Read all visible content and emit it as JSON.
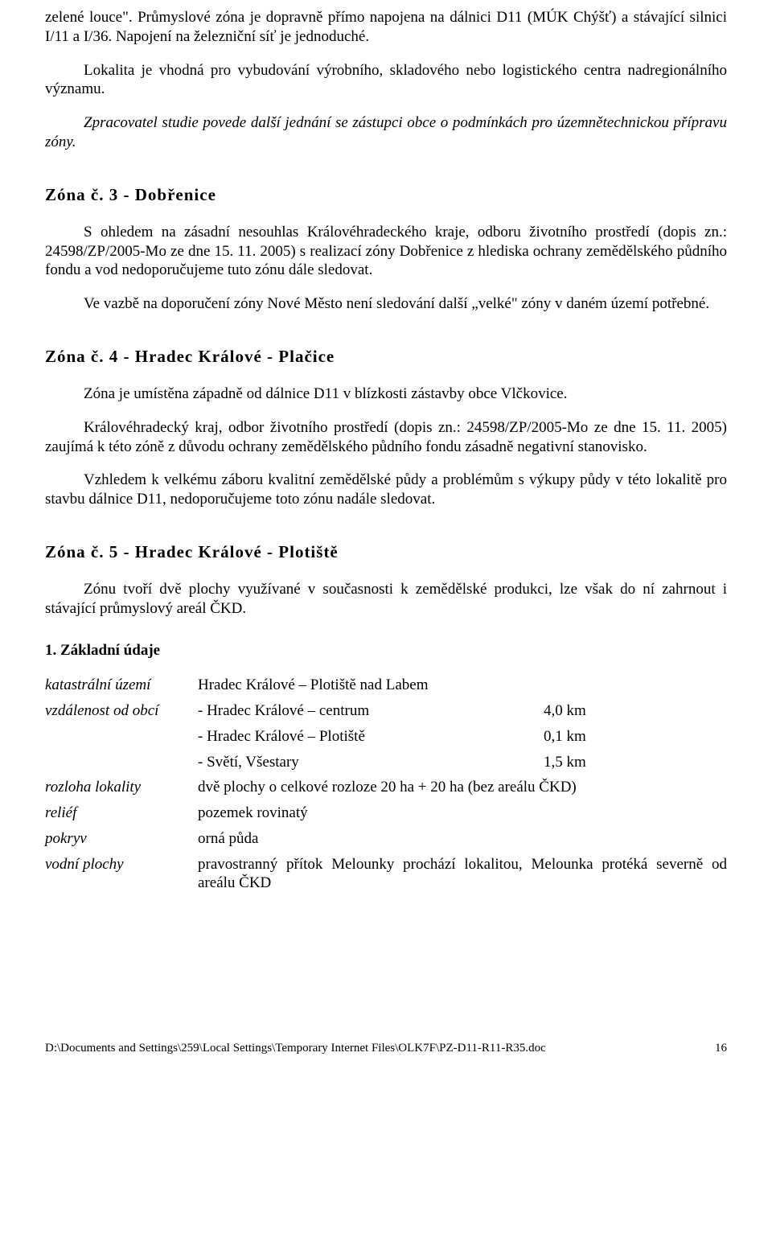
{
  "intro": {
    "p1": "zelené louce\". Průmyslové zóna je dopravně přímo napojena na dálnici D11 (MÚK Chýšť) a stávající silnici I/11 a I/36. Napojení na železniční síť je jednoduché.",
    "p2": "Lokalita je vhodná pro vybudování výrobního, skladového nebo logistického centra nadregionálního významu.",
    "p3": "Zpracovatel studie povede další jednání se zástupci obce o podmínkách pro územnětechnickou přípravu zóny."
  },
  "zone3": {
    "title": "Zóna č. 3 - Dobřenice",
    "p1": "S ohledem na zásadní nesouhlas Královéhradeckého kraje, odboru životního prostředí (dopis zn.: 24598/ZP/2005-Mo ze dne 15. 11. 2005) s realizací zóny Dobřenice z hlediska ochrany zemědělského půdního fondu a vod nedoporučujeme tuto zónu dále sledovat.",
    "p2": "Ve vazbě na doporučení zóny Nové Město není sledování další „velké\" zóny v daném území potřebné."
  },
  "zone4": {
    "title": "Zóna č. 4 - Hradec Králové - Plačice",
    "p1": "Zóna je umístěna západně od dálnice D11 v blízkosti zástavby obce Vlčkovice.",
    "p2": "Královéhradecký kraj, odbor životního prostředí (dopis zn.: 24598/ZP/2005-Mo ze dne 15. 11. 2005) zaujímá k této zóně z důvodu ochrany zemědělského půdního fondu zásadně negativní stanovisko.",
    "p3": "Vzhledem k velkému záboru kvalitní zemědělské půdy a problémům s výkupy půdy v této lokalitě pro stavbu dálnice D11, nedoporučujeme toto zónu nadále sledovat."
  },
  "zone5": {
    "title": "Zóna č. 5 - Hradec Králové - Plotiště",
    "p1": "Zónu tvoří dvě plochy využívané v současnosti k zemědělské produkci, lze však do ní zahrnout i stávající průmyslový areál ČKD.",
    "section_title": "1.  Základní údaje",
    "rows": {
      "katastr": {
        "label": "katastrální území",
        "value": "Hradec Králové – Plotiště nad Labem"
      },
      "vzdalenost": {
        "label": "vzdálenost od obcí",
        "lines": [
          {
            "name": "- Hradec Králové – centrum",
            "dist": "4,0 km"
          },
          {
            "name": "- Hradec Králové – Plotiště",
            "dist": "0,1 km"
          },
          {
            "name": "- Světí, Všestary",
            "dist": "1,5 km"
          }
        ]
      },
      "rozloha": {
        "label": "rozloha lokality",
        "value": "dvě plochy o celkové rozloze 20 ha + 20 ha (bez areálu ČKD)"
      },
      "relief": {
        "label": "reliéf",
        "value": "pozemek rovinatý"
      },
      "pokryv": {
        "label": "pokryv",
        "value": "orná půda"
      },
      "vodni": {
        "label": "vodní plochy",
        "value": "pravostranný přítok Melounky prochází lokalitou, Melounka protéká severně od areálu ČKD"
      }
    }
  },
  "footer": {
    "path": "D:\\Documents and Settings\\259\\Local Settings\\Temporary Internet Files\\OLK7F\\PZ-D11-R11-R35.doc",
    "page": "16"
  }
}
